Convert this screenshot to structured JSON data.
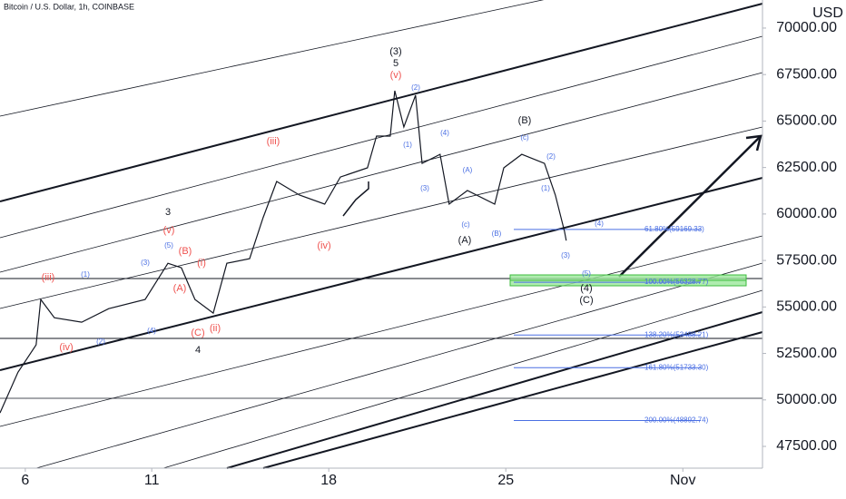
{
  "chart_data": {
    "type": "line",
    "title": "Bitcoin / U.S. Dollar, 1h, COINBASE",
    "y_axis_label": "USD",
    "color": "#131722",
    "x": [
      5.0,
      5.71,
      6.43,
      6.61,
      7.15,
      8.23,
      9.3,
      10.74,
      11.64,
      12.17,
      12.71,
      13.43,
      13.97,
      14.87,
      15.4,
      15.94,
      16.84,
      17.84,
      18.46,
      19.53,
      19.89,
      20.43,
      20.61,
      20.97,
      21.43,
      21.69,
      22.4,
      22.76,
      23.48,
      24.56,
      24.92,
      25.63,
      26.53,
      26.96,
      27.32,
      27.39
    ],
    "values": [
      49300,
      51490,
      52960,
      55400,
      54420,
      54180,
      54910,
      55400,
      57350,
      57110,
      55400,
      54670,
      57350,
      57600,
      59800,
      61750,
      61020,
      60530,
      61990,
      62480,
      64190,
      64190,
      66630,
      64680,
      66390,
      62720,
      63210,
      60530,
      61260,
      60530,
      62480,
      63210,
      62720,
      61020,
      59060,
      58570
    ],
    "xlim": [
      5.0,
      35.15
    ],
    "xticks": [
      6,
      11,
      18,
      25,
      {
        "value": 32,
        "label": "Nov"
      }
    ],
    "ylim": [
      46330,
      71510
    ],
    "yticks": [
      {
        "value": 47500,
        "label": "47500.00"
      },
      {
        "value": 50000,
        "label": "50000.00"
      },
      {
        "value": 52500,
        "label": "52500.00"
      },
      {
        "value": 55000,
        "label": "55000.00"
      },
      {
        "value": 57500,
        "label": "57500.00"
      },
      {
        "value": 60000,
        "label": "60000.00"
      },
      {
        "value": 62500,
        "label": "62500.00"
      },
      {
        "value": 65000,
        "label": "65000.00"
      },
      {
        "value": 67500,
        "label": "67500.00"
      },
      {
        "value": 70000,
        "label": "70000.00"
      }
    ],
    "grid": false,
    "fib_color": "#4a6fe3",
    "fib_levels": [
      {
        "value": 59169.33,
        "label": "61.80%(59169.33)"
      },
      {
        "value": 56328.77,
        "label": "100.00%(56328.77)"
      },
      {
        "value": 53488.21,
        "label": "138.20%(53488.21)"
      },
      {
        "value": 51733.3,
        "label": "161.80%(51733.30)"
      },
      {
        "value": 48892.74,
        "label": "200.00%(48892.74)"
      }
    ],
    "annotations": [
      {
        "text": "(3)",
        "color": "#131722"
      },
      {
        "text": "5",
        "color": "#131722"
      },
      {
        "text": "(v)",
        "color": "#ef5350"
      },
      {
        "text": "(2)",
        "color": "#4a6fe3"
      },
      {
        "text": "(1)",
        "color": "#4a6fe3"
      },
      {
        "text": "(4)",
        "color": "#4a6fe3"
      },
      {
        "text": "(3)",
        "color": "#4a6fe3"
      },
      {
        "text": "(A)",
        "color": "#4a6fe3"
      },
      {
        "text": "(B)",
        "color": "#4a6fe3"
      },
      {
        "text": "(A)",
        "color": "#131722"
      },
      {
        "text": "(B)",
        "color": "#131722"
      },
      {
        "text": "(c)",
        "color": "#4a6fe3"
      },
      {
        "text": "(2)",
        "color": "#4a6fe3"
      },
      {
        "text": "(1)",
        "color": "#4a6fe3"
      },
      {
        "text": "(4)",
        "color": "#4a6fe3"
      },
      {
        "text": "(3)",
        "color": "#4a6fe3"
      },
      {
        "text": "(5)",
        "color": "#4a6fe3"
      },
      {
        "text": "(4)",
        "color": "#131722"
      },
      {
        "text": "(C)",
        "color": "#131722"
      },
      {
        "text": "(iii)",
        "color": "#ef5350"
      },
      {
        "text": "(iv)",
        "color": "#ef5350"
      },
      {
        "text": "3",
        "color": "#131722"
      },
      {
        "text": "(v)",
        "color": "#ef5350"
      },
      {
        "text": "(5)",
        "color": "#4a6fe3"
      },
      {
        "text": "(3)",
        "color": "#4a6fe3"
      },
      {
        "text": "(B)",
        "color": "#ef5350"
      },
      {
        "text": "(i)",
        "color": "#ef5350"
      },
      {
        "text": "(A)",
        "color": "#ef5350"
      },
      {
        "text": "(4)",
        "color": "#4a6fe3"
      },
      {
        "text": "(C)",
        "color": "#ef5350"
      },
      {
        "text": "(ii)",
        "color": "#ef5350"
      },
      {
        "text": "4",
        "color": "#131722"
      },
      {
        "text": "(iii)",
        "color": "#ef5350"
      },
      {
        "text": "(1)",
        "color": "#4a6fe3"
      },
      {
        "text": "(iv)",
        "color": "#ef5350"
      },
      {
        "text": "(2)",
        "color": "#4a6fe3"
      },
      {
        "text": "(c)",
        "color": "#4a6fe3"
      }
    ]
  }
}
